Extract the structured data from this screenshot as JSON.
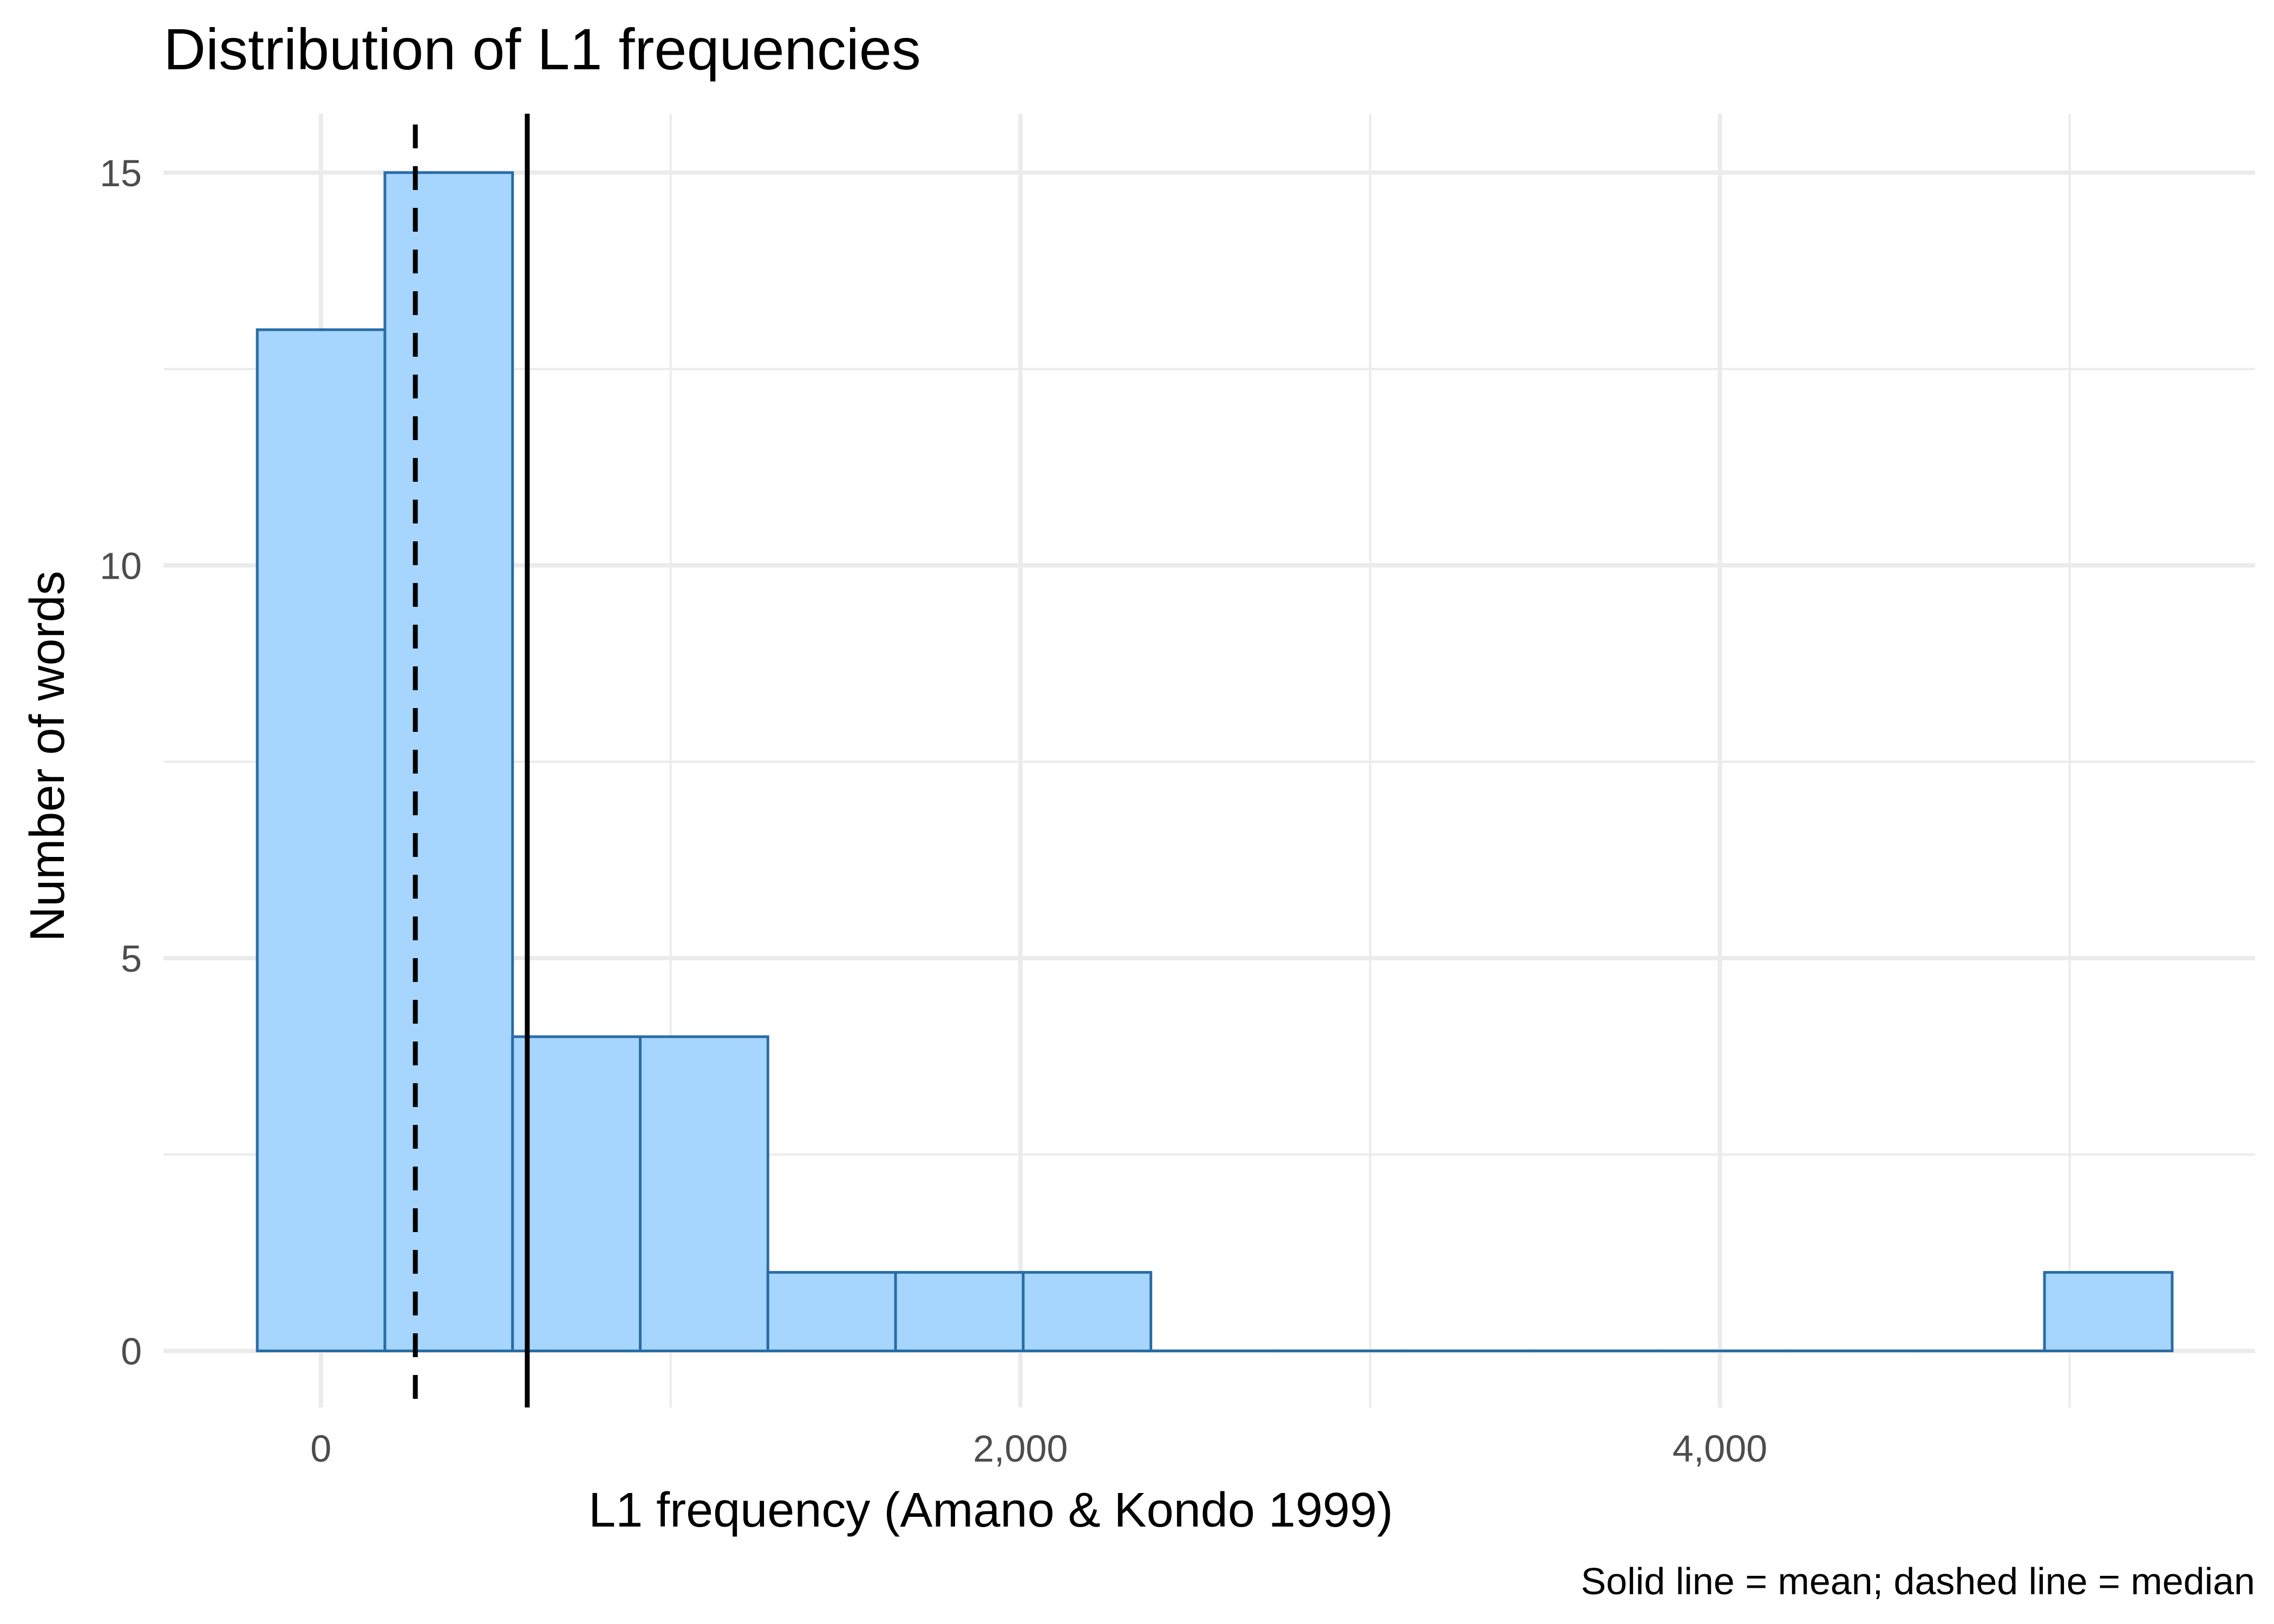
{
  "chart_data": {
    "type": "bar",
    "title": "Distribution of L1 frequencies",
    "xlabel": "L1 frequency (Amano & Kondo 1999)",
    "ylabel": "Number of words",
    "caption": "Solid line = mean; dashed line = median",
    "bin_width": 365,
    "bins": [
      {
        "x0": -182,
        "x1": 183,
        "count": 13
      },
      {
        "x0": 183,
        "x1": 548,
        "count": 15
      },
      {
        "x0": 548,
        "x1": 913,
        "count": 4
      },
      {
        "x0": 913,
        "x1": 1278,
        "count": 4
      },
      {
        "x0": 1278,
        "x1": 1643,
        "count": 1
      },
      {
        "x0": 1643,
        "x1": 2008,
        "count": 1
      },
      {
        "x0": 2008,
        "x1": 2373,
        "count": 1
      },
      {
        "x0": 2373,
        "x1": 2738,
        "count": 0
      },
      {
        "x0": 2738,
        "x1": 3103,
        "count": 0
      },
      {
        "x0": 3103,
        "x1": 3468,
        "count": 0
      },
      {
        "x0": 3468,
        "x1": 3833,
        "count": 0
      },
      {
        "x0": 3833,
        "x1": 4198,
        "count": 0
      },
      {
        "x0": 4198,
        "x1": 4563,
        "count": 0
      },
      {
        "x0": 4563,
        "x1": 4928,
        "count": 0
      },
      {
        "x0": 4928,
        "x1": 5293,
        "count": 1
      }
    ],
    "mean": 590,
    "median": 270,
    "xlim": [
      -450,
      5530
    ],
    "ylim": [
      -0.72,
      15.75
    ],
    "x_ticks": [
      {
        "value": 0,
        "label": "0"
      },
      {
        "value": 2000,
        "label": "2,000"
      },
      {
        "value": 4000,
        "label": "4,000"
      }
    ],
    "y_ticks": [
      {
        "value": 0,
        "label": "0"
      },
      {
        "value": 5,
        "label": "5"
      },
      {
        "value": 10,
        "label": "10"
      },
      {
        "value": 15,
        "label": "15"
      }
    ],
    "x_minor_ticks": [
      1000,
      3000,
      5000
    ],
    "y_minor_ticks": [
      2.5,
      7.5,
      12.5
    ],
    "grid": true,
    "legend": "none",
    "colors": {
      "bar_fill": "#a6d6fd",
      "bar_stroke": "#2a6ca5",
      "mean_line": "#000000",
      "median_line": "#000000",
      "grid": "#ebebeb"
    }
  }
}
